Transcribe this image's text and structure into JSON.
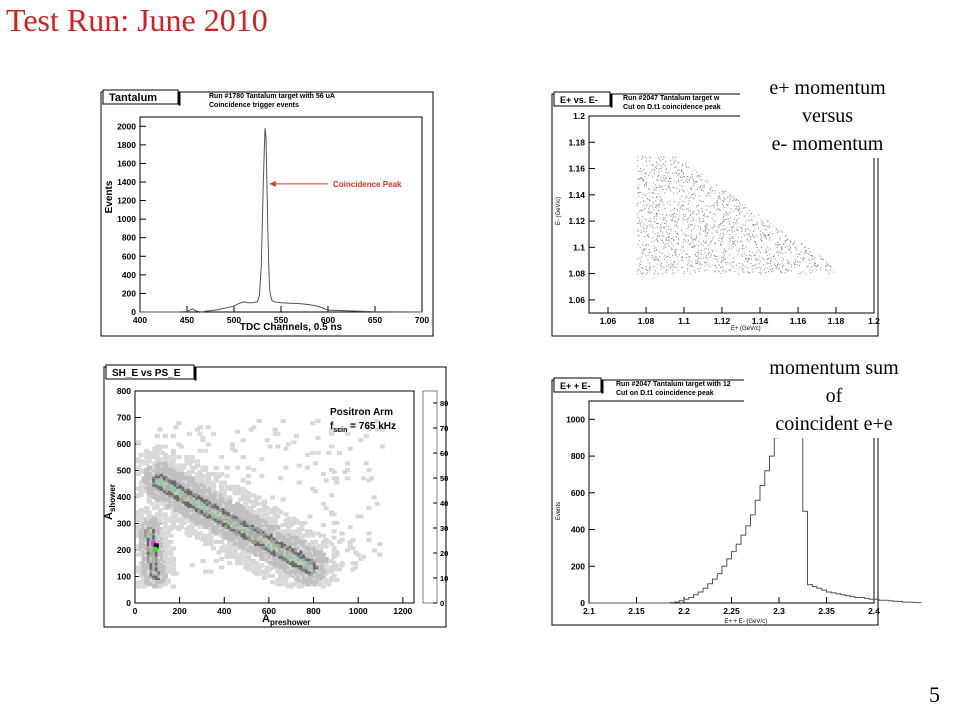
{
  "slide": {
    "title": "Test Run: June 2010",
    "page_number": "5",
    "captions": {
      "top_right": [
        "e+ momentum",
        "versus",
        "e- momentum"
      ],
      "bottom_right": [
        "momentum sum",
        "of",
        "coincident e+e"
      ]
    }
  },
  "chart_data": [
    {
      "type": "line",
      "panel_label": "Tantalum",
      "info": [
        "Run #1780   Tantalum target with 56 uA",
        "Coincidence trigger events"
      ],
      "xlabel": "TDC Channels, 0.5 ns",
      "ylabel": "Events",
      "xlim": [
        400,
        700
      ],
      "ylim": [
        0,
        2100
      ],
      "xticks": [
        400,
        450,
        500,
        550,
        600,
        650,
        700
      ],
      "yticks": [
        0,
        200,
        400,
        600,
        800,
        1000,
        1200,
        1400,
        1600,
        1800,
        2000
      ],
      "annotation": "Coincidence Peak",
      "annotation_color": "#e0301e",
      "series": [
        {
          "x": [
            400,
            440,
            450,
            456,
            460,
            466,
            470,
            480,
            490,
            500,
            505,
            510,
            515,
            520,
            525,
            527,
            529,
            530,
            531,
            532,
            533,
            534,
            535,
            536,
            537,
            538,
            540,
            543,
            546,
            550,
            560,
            570,
            580,
            590,
            600,
            650,
            700
          ],
          "y": [
            0,
            0,
            5,
            35,
            10,
            0,
            10,
            20,
            40,
            65,
            90,
            110,
            100,
            100,
            110,
            180,
            500,
            900,
            1300,
            1680,
            1980,
            1880,
            1400,
            900,
            480,
            230,
            130,
            110,
            105,
            100,
            95,
            90,
            80,
            60,
            20,
            3,
            0
          ]
        }
      ]
    },
    {
      "type": "scatter",
      "panel_label": "E+ vs. E-",
      "info": [
        "Run #2047   Tantalum target w",
        "Cut on D.t1 coincidence peak"
      ],
      "xlabel": "E+ (GeV/c)",
      "ylabel": "E- (GeV/c)",
      "xlim": [
        1.05,
        1.2
      ],
      "ylim": [
        1.05,
        1.2
      ],
      "xticks": [
        1.06,
        1.08,
        1.1,
        1.12,
        1.14,
        1.16,
        1.18,
        1.2
      ],
      "yticks": [
        1.06,
        1.08,
        1.1,
        1.12,
        1.14,
        1.16,
        1.18,
        1.2
      ],
      "ytick_labels": [
        "1.06",
        "1.08",
        "1.1",
        "1.12",
        "1.14",
        "1.16",
        "1.18",
        "1.2"
      ],
      "region": {
        "x": [
          1.075,
          1.18
        ],
        "y": [
          1.08,
          1.17
        ],
        "sum_max": 2.265
      }
    },
    {
      "type": "heatmap",
      "panel_label": "SH_E vs PS_E",
      "xlabel": "A",
      "xlabel_sub": "preshower",
      "ylabel": "A",
      "ylabel_sub": "shower",
      "xlim": [
        0,
        1250
      ],
      "ylim": [
        0,
        800
      ],
      "xticks": [
        0,
        200,
        400,
        600,
        800,
        1000,
        1200
      ],
      "yticks": [
        0,
        100,
        200,
        300,
        400,
        500,
        600,
        700,
        800
      ],
      "annotation_lines": [
        "Positron Arm"
      ],
      "annotation_f": "f",
      "annotation_f_sub": "scin",
      "annotation_f_value": " = 765 kHz",
      "colorbar_ticks": [
        0,
        10,
        20,
        30,
        40,
        50,
        60,
        70,
        80
      ],
      "colorbar_colors": [
        "#ffffff",
        "#d8d8d8",
        "#c0c0c0",
        "#6a6a6a",
        "#9a9a9a",
        "#c8c8b8",
        "#b8a898",
        "#8a7a6a",
        "#90c8b0",
        "#88a8a8",
        "#7090a0",
        "#a8b8c8",
        "#d8d8b8",
        "#c8b898",
        "#a89888",
        "#c07080",
        "#ff3030",
        "#a0a0ff",
        "#30e030",
        "#000000"
      ],
      "bands": [
        {
          "x0": 100,
          "y0": 470,
          "x1": 780,
          "y1": 145,
          "width": 55
        },
        {
          "x0": 60,
          "y0": 280,
          "x1": 80,
          "y1": 120,
          "width": 40
        }
      ]
    },
    {
      "type": "bar",
      "panel_label": "E+ + E-",
      "info": [
        "Run #2047   Tantalum target with 12",
        "Cut on D.t1 coincidence peak"
      ],
      "xlabel": "E+ + E- (GeV/c)",
      "ylabel": "Events",
      "xlim": [
        2.1,
        2.4
      ],
      "ylim": [
        0,
        1100
      ],
      "xticks": [
        2.1,
        2.15,
        2.2,
        2.25,
        2.3,
        2.35,
        2.4
      ],
      "yticks": [
        0,
        200,
        400,
        600,
        800,
        1000
      ],
      "bin_width": 0.005,
      "bin_start": 2.1,
      "values": [
        0,
        0,
        0,
        0,
        0,
        0,
        0,
        0,
        0,
        0,
        0,
        0,
        0,
        0,
        0,
        0,
        0,
        2,
        5,
        12,
        20,
        30,
        45,
        60,
        80,
        105,
        130,
        160,
        200,
        240,
        280,
        320,
        370,
        420,
        480,
        560,
        640,
        720,
        800,
        900,
        1070,
        1000,
        1060,
        980,
        1060,
        500,
        100,
        90,
        80,
        70,
        60,
        55,
        50,
        45,
        40,
        35,
        30,
        30,
        25,
        20,
        20,
        15,
        15,
        12,
        10,
        8,
        5,
        5,
        3,
        2
      ]
    }
  ]
}
